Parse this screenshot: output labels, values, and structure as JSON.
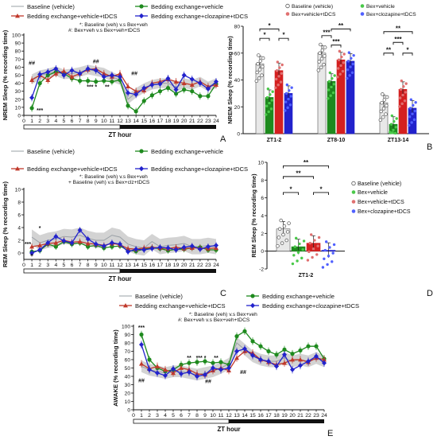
{
  "colors": {
    "baseline": "#9aa0a6",
    "bex_vehicle": "#1e8a1e",
    "bex_vehicle_tdcs": "#c0392b",
    "bex_clozapine_tdcs": "#2222cc",
    "band": "#c4c4c4"
  },
  "zt_axis_label": "ZT hour",
  "zt_ticks": [
    "0",
    "1",
    "2",
    "3",
    "4",
    "5",
    "6",
    "7",
    "8",
    "9",
    "10",
    "11",
    "12",
    "13",
    "14",
    "15",
    "16",
    "17",
    "18",
    "19",
    "20",
    "21",
    "22",
    "23",
    "24"
  ],
  "chart_data": [
    {
      "id": "A",
      "type": "line",
      "panel_label": "A",
      "ylabel": "NREM Sleep (% recording time)",
      "xlabel": "ZT hour",
      "ylim": [
        0,
        100
      ],
      "yticks": [
        "0",
        "10",
        "20",
        "30",
        "40",
        "50",
        "60",
        "70",
        "80",
        "90",
        "100"
      ],
      "legend": [
        "Baseline (vehicle)",
        "Bedding exchange+vehicle",
        "Bedding exchange+vehicle+tDCS",
        "Bedding exchange+clozapine+tDCS"
      ],
      "notes": [
        "*: Baseline (veh) v.s Bex+veh",
        "#: Bex+veh v.s Bex+veh+tDCS"
      ],
      "annotations": [
        {
          "text": "##",
          "x": 1,
          "y": 63
        },
        {
          "text": "***",
          "x": 2,
          "y": 4
        },
        {
          "text": "##",
          "x": 9,
          "y": 65
        },
        {
          "text": "*** *",
          "x": 8.5,
          "y": 33
        },
        {
          "text": "**",
          "x": 10.4,
          "y": 33
        },
        {
          "text": "##",
          "x": 13.8,
          "y": 50
        }
      ],
      "x": [
        1,
        2,
        3,
        4,
        5,
        6,
        7,
        8,
        9,
        10,
        11,
        12,
        13,
        14,
        15,
        16,
        17,
        18,
        19,
        20,
        21,
        22,
        23,
        24
      ],
      "series": [
        {
          "name": "Baseline (vehicle)",
          "values": [
            45,
            50,
            52,
            55,
            51,
            52,
            54,
            57,
            55,
            53,
            48,
            44,
            20,
            28,
            34,
            38,
            40,
            40,
            35,
            40,
            38,
            42,
            36,
            40
          ],
          "band": 6
        },
        {
          "name": "Bedding exchange+vehicle",
          "values": [
            9,
            40,
            50,
            54,
            52,
            46,
            43,
            43,
            42,
            43,
            42,
            44,
            12,
            5,
            18,
            25,
            30,
            34,
            27,
            32,
            30,
            24,
            24,
            39
          ]
        },
        {
          "name": "Bedding exchange+vehicle+tDCS",
          "values": [
            44,
            50,
            44,
            52,
            55,
            48,
            52,
            57,
            58,
            52,
            48,
            52,
            36,
            30,
            31,
            40,
            42,
            45,
            42,
            40,
            38,
            42,
            36,
            38
          ]
        },
        {
          "name": "Bedding exchange+clozapine+tDCS",
          "values": [
            22,
            51,
            54,
            58,
            50,
            56,
            52,
            58,
            56,
            48,
            50,
            48,
            28,
            26,
            34,
            38,
            39,
            46,
            32,
            50,
            45,
            40,
            33,
            42
          ]
        }
      ]
    },
    {
      "id": "B",
      "type": "bar",
      "panel_label": "B",
      "ylabel": "NREM Sleep (% recording time)",
      "ylim": [
        0,
        80
      ],
      "yticks": [
        "0",
        "20",
        "40",
        "60",
        "80"
      ],
      "categories": [
        "ZT1-2",
        "ZT8-10",
        "ZT13-14"
      ],
      "legend": [
        "Baseline (vehicle)",
        "Bex+vehicle",
        "Bex+vehicle+tDCS",
        "Bex+clozapine+tDCS"
      ],
      "series": [
        {
          "name": "Baseline (vehicle)",
          "values": [
            52,
            60,
            23
          ]
        },
        {
          "name": "Bex+vehicle",
          "values": [
            27,
            39,
            7
          ]
        },
        {
          "name": "Bex+vehicle+tDCS",
          "values": [
            47,
            55,
            33
          ]
        },
        {
          "name": "Bex+clozapine+tDCS",
          "values": [
            30,
            54,
            19
          ]
        }
      ],
      "brackets": [
        {
          "cat": 0,
          "a": 0,
          "b": 2,
          "y": 78,
          "label": "*"
        },
        {
          "cat": 0,
          "a": 0,
          "b": 1,
          "y": 71,
          "label": "*"
        },
        {
          "cat": 0,
          "a": 2,
          "b": 3,
          "y": 71,
          "label": "*"
        },
        {
          "cat": 1,
          "a": 0,
          "b": 1,
          "y": 73,
          "label": "***"
        },
        {
          "cat": 1,
          "a": 1,
          "b": 2,
          "y": 66,
          "label": "***"
        },
        {
          "cat": 1,
          "a": 1,
          "b": 3,
          "y": 78,
          "label": "**"
        },
        {
          "cat": 2,
          "a": 0,
          "b": 3,
          "y": 76,
          "label": "**"
        },
        {
          "cat": 2,
          "a": 0,
          "b": 1,
          "y": 60,
          "label": "**"
        },
        {
          "cat": 2,
          "a": 1,
          "b": 2,
          "y": 68,
          "label": "***"
        },
        {
          "cat": 2,
          "a": 2,
          "b": 3,
          "y": 60,
          "label": "*"
        }
      ]
    },
    {
      "id": "C",
      "type": "line",
      "panel_label": "C",
      "ylabel": "REM Sleep (% recording time)",
      "xlabel": "ZT hour",
      "ylim": [
        -1,
        10
      ],
      "yticks": [
        "0",
        "2",
        "4",
        "6",
        "8",
        "10"
      ],
      "legend": [
        "Baseline (vehicle)",
        "Bedding exchange+vehicle",
        "Bedding exchange+vehicle+tDCS",
        "Bedding exchange+clozapine+tDCS"
      ],
      "notes": [
        "*: Baseline (veh) v.s Bex+veh",
        "+ Baseline (veh) v.s Bex+clz+tDCS"
      ],
      "annotations": [
        {
          "text": "***",
          "x": 0.5,
          "y": 1.1
        },
        {
          "text": "*",
          "x": 2,
          "y": 3.6
        },
        {
          "text": "+",
          "x": 1,
          "y": -0.6
        }
      ],
      "x": [
        1,
        2,
        3,
        4,
        5,
        6,
        7,
        8,
        9,
        10,
        11,
        12,
        13,
        14,
        15,
        16,
        17,
        18,
        19,
        20,
        21,
        22,
        23,
        24
      ],
      "series": [
        {
          "name": "Baseline (vehicle)",
          "values": [
            2.5,
            1.6,
            2.0,
            2.2,
            2.6,
            2.5,
            2.8,
            2.3,
            2.0,
            2.0,
            2.8,
            2.5,
            1.4,
            1.0,
            0.8,
            1.8,
            1.0,
            1.2,
            1.3,
            1.5,
            1.0,
            1.0,
            1.2,
            1.0
          ],
          "band": 1.2
        },
        {
          "name": "Bedding exchange+vehicle",
          "values": [
            0.2,
            0.4,
            1.4,
            1.0,
            1.8,
            1.4,
            1.6,
            1.0,
            1.2,
            0.8,
            1.0,
            1.1,
            0.4,
            0.3,
            0.6,
            0.8,
            0.7,
            0.4,
            0.6,
            0.6,
            0.8,
            0.9,
            0.5,
            0.5
          ]
        },
        {
          "name": "Bedding exchange+vehicle+tDCS",
          "values": [
            1.0,
            1.2,
            1.5,
            1.6,
            2.0,
            1.7,
            1.8,
            1.5,
            1.4,
            1.2,
            1.5,
            1.3,
            0.7,
            0.6,
            0.8,
            0.9,
            0.8,
            0.7,
            0.9,
            0.7,
            0.8,
            0.8,
            0.7,
            0.8
          ]
        },
        {
          "name": "Bedding exchange+clozapine+tDCS",
          "values": [
            0.0,
            0.5,
            1.6,
            2.6,
            1.9,
            1.6,
            3.6,
            2.2,
            1.4,
            1.1,
            1.6,
            1.4,
            0.2,
            0.6,
            0.5,
            0.7,
            0.9,
            0.8,
            0.5,
            0.9,
            1.1,
            0.6,
            1.0,
            1.2
          ]
        }
      ]
    },
    {
      "id": "D",
      "type": "bar",
      "panel_label": "D",
      "ylabel": "REM Sleep (% recording time)",
      "ylim": [
        -2,
        10
      ],
      "yticks": [
        "-2",
        "0",
        "2",
        "4",
        "6",
        "8",
        "10"
      ],
      "categories": [
        "ZT1-2"
      ],
      "legend": [
        "Baseline (vehicle)",
        "Bex+vehicle",
        "Bex+vehicle+tDCS",
        "Bex+clozapine+tDCS"
      ],
      "series": [
        {
          "name": "Baseline (vehicle)",
          "values": [
            2.5
          ]
        },
        {
          "name": "Bex+vehicle",
          "values": [
            0.5
          ]
        },
        {
          "name": "Bex+vehicle+tDCS",
          "values": [
            0.9
          ]
        },
        {
          "name": "Bex+clozapine+tDCS",
          "values": [
            0.1
          ]
        }
      ],
      "brackets": [
        {
          "cat": 0,
          "a": 0,
          "b": 3,
          "y": 9.6,
          "label": "**"
        },
        {
          "cat": 0,
          "a": 0,
          "b": 2,
          "y": 8.4,
          "label": "**"
        },
        {
          "cat": 0,
          "a": 0,
          "b": 1,
          "y": 6.6,
          "label": "*"
        },
        {
          "cat": 0,
          "a": 2,
          "b": 3,
          "y": 6.6,
          "label": "*"
        }
      ]
    },
    {
      "id": "E",
      "type": "line",
      "panel_label": "E",
      "ylabel": "AWAKE (% recording time)",
      "xlabel": "ZT hour",
      "ylim": [
        0,
        100
      ],
      "yticks": [
        "0",
        "10",
        "20",
        "30",
        "40",
        "50",
        "60",
        "70",
        "80",
        "90",
        "100"
      ],
      "legend": [
        "Baseline (vehicle)",
        "Bedding exchange+vehicle",
        "Bedding exchange+vehicle+tDCS",
        "Bedding exchange+clozapine+tDCS"
      ],
      "notes": [
        "*: Baseline (veh) v.s Bex+veh",
        "#: Bex+veh v.s Bex+veh+tDCS"
      ],
      "annotations": [
        {
          "text": "***",
          "x": 1,
          "y": 96
        },
        {
          "text": "##",
          "x": 1,
          "y": 33
        },
        {
          "text": "**",
          "x": 7,
          "y": 60
        },
        {
          "text": "*** *",
          "x": 8.5,
          "y": 60
        },
        {
          "text": "**",
          "x": 10.4,
          "y": 60
        },
        {
          "text": "##",
          "x": 9.4,
          "y": 32
        },
        {
          "text": "##",
          "x": 13.8,
          "y": 43
        }
      ],
      "x": [
        1,
        2,
        3,
        4,
        5,
        6,
        7,
        8,
        9,
        10,
        11,
        12,
        13,
        14,
        15,
        16,
        17,
        18,
        19,
        20,
        21,
        22,
        23,
        24
      ],
      "series": [
        {
          "name": "Baseline (vehicle)",
          "values": [
            52,
            48,
            46,
            44,
            46,
            46,
            44,
            42,
            44,
            46,
            50,
            55,
            80,
            72,
            64,
            60,
            58,
            58,
            62,
            58,
            60,
            58,
            62,
            58
          ],
          "band": 7
        },
        {
          "name": "Bedding exchange+vehicle",
          "values": [
            90,
            60,
            50,
            46,
            48,
            54,
            56,
            57,
            58,
            56,
            57,
            54,
            88,
            94,
            82,
            76,
            70,
            66,
            72,
            67,
            71,
            76,
            76,
            61
          ]
        },
        {
          "name": "Bedding exchange+vehicle+tDCS",
          "values": [
            55,
            49,
            52,
            48,
            44,
            50,
            48,
            43,
            42,
            47,
            50,
            47,
            62,
            70,
            68,
            60,
            57,
            54,
            56,
            60,
            60,
            57,
            62,
            60
          ]
        },
        {
          "name": "Bedding exchange+clozapine+tDCS",
          "values": [
            78,
            48,
            44,
            41,
            49,
            43,
            45,
            40,
            42,
            50,
            48,
            50,
            70,
            73,
            65,
            60,
            58,
            52,
            66,
            48,
            53,
            58,
            64,
            56
          ]
        }
      ]
    }
  ]
}
